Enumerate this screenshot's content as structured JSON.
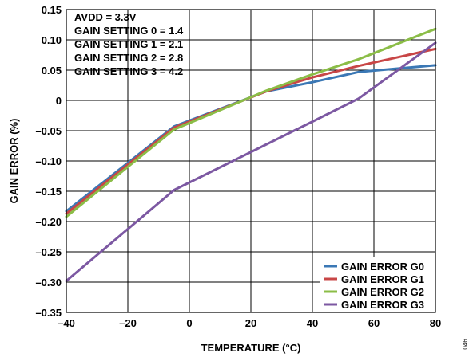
{
  "chart_data": {
    "type": "line",
    "title": "",
    "xlabel": "TEMPERATURE (°C)",
    "ylabel": "GAIN ERROR (%)",
    "xlim": [
      -40,
      80
    ],
    "ylim": [
      -0.35,
      0.15
    ],
    "xticks": [
      -40,
      -20,
      0,
      20,
      40,
      60,
      80
    ],
    "yticks": [
      0.15,
      0.1,
      0.05,
      0,
      -0.05,
      -0.1,
      -0.15,
      -0.2,
      -0.25,
      -0.3,
      -0.35
    ],
    "xtick_labels": [
      "–40",
      "–20",
      "0",
      "20",
      "40",
      "60",
      "80"
    ],
    "ytick_labels": [
      "0.15",
      "0.10",
      "0.05",
      "0",
      "–0.05",
      "–0.10",
      "–0.15",
      "–0.20",
      "–0.25",
      "–0.30",
      "–0.35"
    ],
    "grid": true,
    "legend_position": "bottom-right",
    "annotations": [
      "AVDD = 3.3V",
      "GAIN SETTING 0 = 1.4",
      "GAIN SETTING 1 = 2.1",
      "GAIN SETTING 2 = 2.8",
      "GAIN SETTING 3 = 4.2"
    ],
    "figure_id": "046",
    "series": [
      {
        "name": "GAIN ERROR G0",
        "color": "#3b78b5",
        "x": [
          -40,
          -5,
          25,
          40,
          55,
          80
        ],
        "y": [
          -0.183,
          -0.043,
          0.015,
          0.03,
          0.047,
          0.058
        ]
      },
      {
        "name": "GAIN ERROR G1",
        "color": "#c84646",
        "x": [
          -40,
          -5,
          25,
          40,
          55,
          80
        ],
        "y": [
          -0.187,
          -0.045,
          0.015,
          0.038,
          0.057,
          0.085
        ]
      },
      {
        "name": "GAIN ERROR G2",
        "color": "#8bbd47",
        "x": [
          -40,
          -5,
          25,
          40,
          55,
          80
        ],
        "y": [
          -0.192,
          -0.048,
          0.016,
          0.043,
          0.068,
          0.118
        ]
      },
      {
        "name": "GAIN ERROR G3",
        "color": "#7c58a2",
        "x": [
          -40,
          -5,
          40,
          55,
          80
        ],
        "y": [
          -0.298,
          -0.148,
          -0.035,
          0.003,
          0.095
        ]
      }
    ]
  }
}
